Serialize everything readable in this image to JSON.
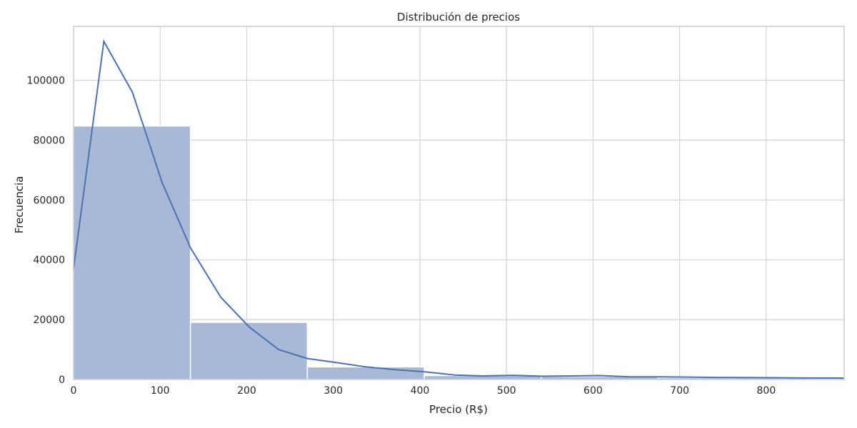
{
  "chart_data": {
    "type": "bar",
    "title": "Distribución de precios",
    "xlabel": "Precio (R$)",
    "ylabel": "Frecuencia",
    "xlim": [
      0,
      890
    ],
    "ylim": [
      0,
      118000
    ],
    "grid": true,
    "x_ticks": [
      0,
      100,
      200,
      300,
      400,
      500,
      600,
      700,
      800
    ],
    "y_ticks": [
      0,
      20000,
      40000,
      60000,
      80000,
      100000
    ],
    "bins": [
      {
        "x0": 0,
        "x1": 135,
        "value": 84700
      },
      {
        "x0": 135,
        "x1": 270,
        "value": 19100
      },
      {
        "x0": 270,
        "x1": 405,
        "value": 4200
      },
      {
        "x0": 405,
        "x1": 540,
        "value": 1300
      },
      {
        "x0": 540,
        "x1": 675,
        "value": 1000
      },
      {
        "x0": 675,
        "x1": 890,
        "value": 600
      }
    ],
    "kde": {
      "x": [
        0,
        35,
        68,
        102,
        135,
        170,
        203,
        237,
        270,
        305,
        338,
        372,
        405,
        440,
        473,
        507,
        540,
        575,
        608,
        642,
        675,
        710,
        743,
        777,
        810,
        845,
        878,
        890
      ],
      "y": [
        37000,
        113000,
        96000,
        66000,
        44000,
        27500,
        17500,
        10000,
        7000,
        5600,
        4200,
        3300,
        2600,
        1500,
        1200,
        1400,
        1100,
        1200,
        1300,
        900,
        900,
        800,
        700,
        650,
        600,
        500,
        500,
        450
      ]
    },
    "colors": {
      "bar_fill": "#a3b5d6",
      "bar_stroke": "#ffffff",
      "kde_line": "#4c72b0",
      "grid": "#d3d3d3",
      "axes_edge": "#cccccc"
    }
  }
}
